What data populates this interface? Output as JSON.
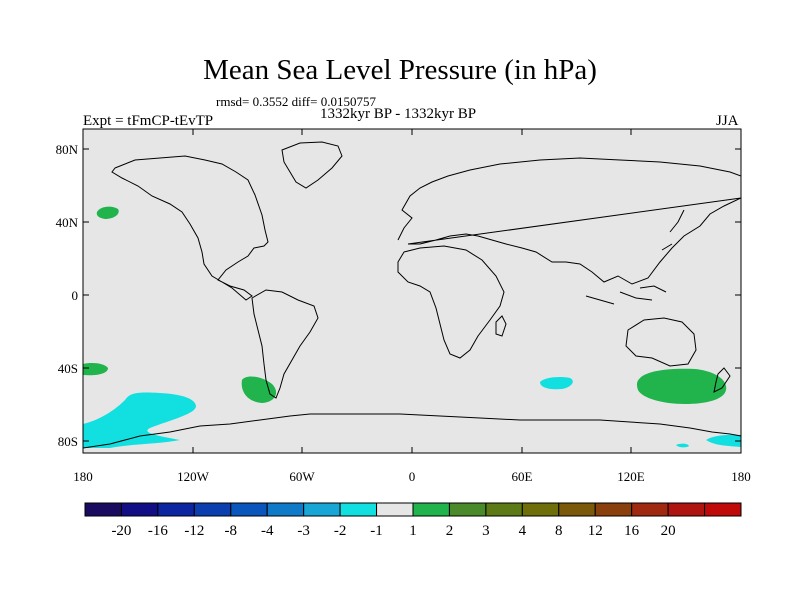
{
  "title": "Mean Sea Level Pressure (in hPa)",
  "stats": "rmsd= 0.3552 diff= 0.0150757",
  "period": "1332kyr BP - 1332kyr BP",
  "experiment": "Expt = tFmCP-tEvTP",
  "season": "JJA",
  "lat_ticks": [
    "80N",
    "40N",
    "0",
    "40S",
    "80S"
  ],
  "lon_ticks": [
    "180",
    "120W",
    "60W",
    "0",
    "60E",
    "120E",
    "180"
  ],
  "colorbar": {
    "colors": [
      "#1a0b60",
      "#120f86",
      "#0c26a2",
      "#0b3fb0",
      "#0a56bd",
      "#0f7ac8",
      "#17a6d6",
      "#12e0e0",
      "#e6e6e6",
      "#21b34c",
      "#4a8a2a",
      "#5c7a16",
      "#6e6e0a",
      "#7a5a0a",
      "#8a400c",
      "#a02a10",
      "#b01410",
      "#c00a0a"
    ],
    "labels": [
      "-20",
      "-16",
      "-12",
      "-8",
      "-4",
      "-3",
      "-2",
      "-1",
      "1",
      "2",
      "3",
      "4",
      "8",
      "12",
      "16",
      "20"
    ]
  },
  "map_legend_colors": {
    "land_background": "#e6e6e6",
    "neg": "#12e0e0",
    "pos": "#21b34c"
  }
}
